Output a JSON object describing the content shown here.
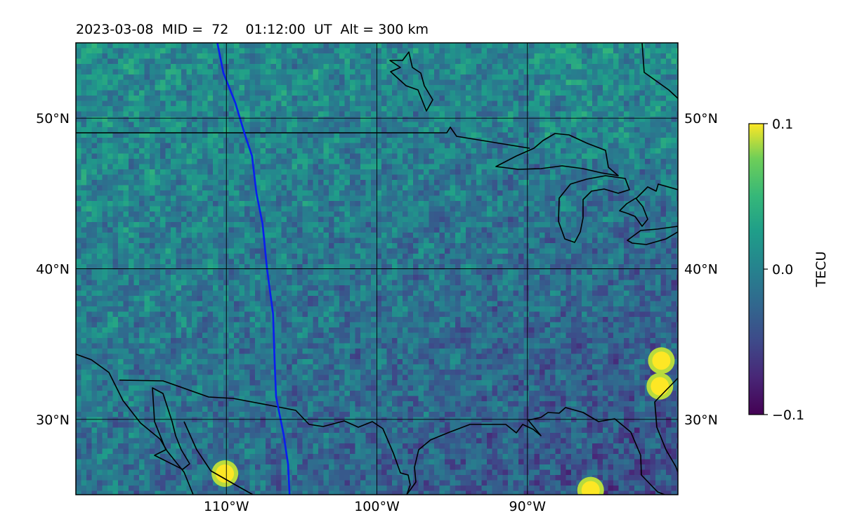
{
  "map": {
    "title": "2023-03-08  MID =  72    01:12:00  UT  Alt = 300 km",
    "extent": {
      "lon_min": -120,
      "lon_max": -80,
      "lat_min": 25,
      "lat_max": 55
    },
    "lat_ticks": [
      {
        "value": 50,
        "label": "50°N"
      },
      {
        "value": 40,
        "label": "40°N"
      },
      {
        "value": 30,
        "label": "30°N"
      }
    ],
    "lon_ticks": [
      {
        "value": -110,
        "label": "110°W"
      },
      {
        "value": -100,
        "label": "100°W"
      },
      {
        "value": -90,
        "label": "90°W"
      }
    ],
    "colorbar": {
      "label": "TECU",
      "colormap": "viridis",
      "min": -0.1,
      "max": 0.1,
      "ticks": [
        {
          "value": 0.1,
          "label": "0.1"
        },
        {
          "value": 0.0,
          "label": "0.0"
        },
        {
          "value": -0.1,
          "label": "−0.1"
        }
      ]
    },
    "terminator": {
      "color": "#0a1ef0",
      "points": [
        [
          -110.6,
          55
        ],
        [
          -110.2,
          53
        ],
        [
          -109.4,
          51
        ],
        [
          -108.8,
          49
        ],
        [
          -108.3,
          47.5
        ],
        [
          -108.0,
          45
        ],
        [
          -107.6,
          43
        ],
        [
          -107.3,
          40
        ],
        [
          -106.9,
          37
        ],
        [
          -106.8,
          34
        ],
        [
          -106.7,
          31.5
        ],
        [
          -106.2,
          29
        ],
        [
          -105.9,
          27
        ],
        [
          -105.8,
          25
        ]
      ]
    },
    "enhancements": [
      {
        "lon": -110.1,
        "lat": 26.4,
        "value": 0.1
      },
      {
        "lon": -85.8,
        "lat": 25.3,
        "value": 0.1
      },
      {
        "lon": -81.2,
        "lat": 32.2,
        "value": 0.1
      },
      {
        "lon": -81.1,
        "lat": 33.9,
        "value": 0.1
      }
    ]
  }
}
